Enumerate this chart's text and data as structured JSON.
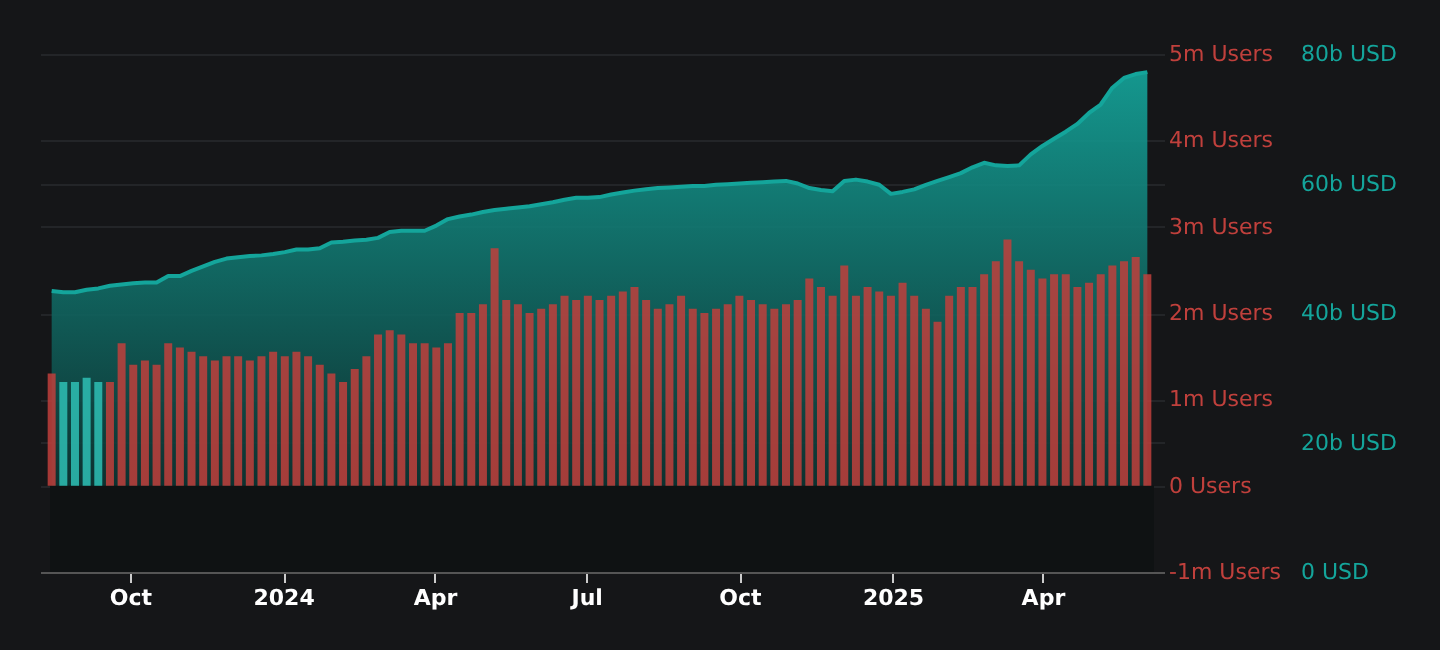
{
  "chart_data": {
    "type": "bar",
    "grid": true,
    "x": [
      "2023-08-15",
      "2023-08-22",
      "2023-08-29",
      "2023-09-05",
      "2023-09-12",
      "2023-09-19",
      "2023-09-26",
      "2023-10-03",
      "2023-10-10",
      "2023-10-17",
      "2023-10-24",
      "2023-10-31",
      "2023-11-07",
      "2023-11-14",
      "2023-11-21",
      "2023-11-28",
      "2023-12-05",
      "2023-12-12",
      "2023-12-19",
      "2023-12-26",
      "2024-01-02",
      "2024-01-09",
      "2024-01-16",
      "2024-01-23",
      "2024-01-30",
      "2024-02-06",
      "2024-02-13",
      "2024-02-20",
      "2024-02-27",
      "2024-03-05",
      "2024-03-12",
      "2024-03-19",
      "2024-03-26",
      "2024-04-02",
      "2024-04-09",
      "2024-04-16",
      "2024-04-23",
      "2024-04-30",
      "2024-05-07",
      "2024-05-14",
      "2024-05-21",
      "2024-05-28",
      "2024-06-04",
      "2024-06-11",
      "2024-06-18",
      "2024-06-25",
      "2024-07-02",
      "2024-07-09",
      "2024-07-16",
      "2024-07-23",
      "2024-07-30",
      "2024-08-06",
      "2024-08-13",
      "2024-08-20",
      "2024-08-27",
      "2024-09-03",
      "2024-09-10",
      "2024-09-17",
      "2024-09-24",
      "2024-10-01",
      "2024-10-08",
      "2024-10-15",
      "2024-10-22",
      "2024-10-29",
      "2024-11-05",
      "2024-11-12",
      "2024-11-19",
      "2024-11-26",
      "2024-12-03",
      "2024-12-10",
      "2024-12-17",
      "2024-12-24",
      "2024-12-31",
      "2025-01-07",
      "2025-01-14",
      "2025-01-21",
      "2025-01-28",
      "2025-02-04",
      "2025-02-11",
      "2025-02-18",
      "2025-02-25",
      "2025-03-04",
      "2025-03-11",
      "2025-03-18",
      "2025-03-25",
      "2025-04-01",
      "2025-04-08",
      "2025-04-15",
      "2025-04-22",
      "2025-04-29",
      "2025-05-06",
      "2025-05-13",
      "2025-05-20",
      "2025-05-27",
      "2025-06-03"
    ],
    "xlim": [
      "2023-08-14",
      "2025-06-07"
    ],
    "xticks": [
      {
        "value": "2023-10-01",
        "label": "Oct"
      },
      {
        "value": "2024-01-01",
        "label": "2024"
      },
      {
        "value": "2024-04-01",
        "label": "Apr"
      },
      {
        "value": "2024-07-01",
        "label": "Jul"
      },
      {
        "value": "2024-10-01",
        "label": "Oct"
      },
      {
        "value": "2025-01-01",
        "label": "2025"
      },
      {
        "value": "2025-04-01",
        "label": "Apr"
      }
    ],
    "ylim": [
      -1,
      5
    ],
    "yticks": [
      {
        "value": -1,
        "label": "-1m Users"
      },
      {
        "value": 0,
        "label": "0 Users"
      },
      {
        "value": 1,
        "label": "1m Users"
      },
      {
        "value": 2,
        "label": "2m Users"
      },
      {
        "value": 3,
        "label": "3m Users"
      },
      {
        "value": 4,
        "label": "4m Users"
      },
      {
        "value": 5,
        "label": "5m Users"
      }
    ],
    "y2lim": [
      0,
      80
    ],
    "y2ticks": [
      {
        "value": 0,
        "label": "0 USD"
      },
      {
        "value": 20,
        "label": "20b USD"
      },
      {
        "value": 40,
        "label": "40b USD"
      },
      {
        "value": 60,
        "label": "60b USD"
      },
      {
        "value": 80,
        "label": "80b USD"
      }
    ],
    "bands": [
      {
        "axis": "y",
        "from": -1,
        "to": 0,
        "color": "#0f1213"
      }
    ],
    "series": [
      {
        "values": [
          1.3,
          1.2,
          1.2,
          1.25,
          1.2,
          1.2,
          1.65,
          1.4,
          1.45,
          1.4,
          1.65,
          1.6,
          1.55,
          1.5,
          1.45,
          1.5,
          1.5,
          1.45,
          1.5,
          1.55,
          1.5,
          1.55,
          1.5,
          1.4,
          1.3,
          1.2,
          1.35,
          1.5,
          1.75,
          1.8,
          1.75,
          1.65,
          1.65,
          1.6,
          1.65,
          2.0,
          2.0,
          2.1,
          2.75,
          2.15,
          2.1,
          2.0,
          2.05,
          2.1,
          2.2,
          2.15,
          2.2,
          2.15,
          2.2,
          2.25,
          2.3,
          2.15,
          2.05,
          2.1,
          2.2,
          2.05,
          2.0,
          2.05,
          2.1,
          2.2,
          2.15,
          2.1,
          2.05,
          2.1,
          2.15,
          2.4,
          2.3,
          2.2,
          2.55,
          2.2,
          2.3,
          2.25,
          2.2,
          2.35,
          2.2,
          2.05,
          1.9,
          2.2,
          2.3,
          2.3,
          2.45,
          2.6,
          2.85,
          2.6,
          2.5,
          2.4,
          2.45,
          2.45,
          2.3,
          2.35,
          2.45,
          2.55,
          2.6,
          2.65,
          2.45
        ],
        "colors": [
          "#c0403c",
          "#2ebfb5",
          "#2ebfb5",
          "#2ebfb5",
          "#2ebfb5",
          "#c0403c",
          "#c0403c",
          "#c0403c",
          "#c0403c",
          "#c0403c",
          "#c0403c",
          "#c0403c",
          "#c0403c",
          "#c0403c",
          "#c0403c",
          "#c0403c",
          "#c0403c",
          "#c0403c",
          "#c0403c",
          "#c0403c",
          "#c0403c",
          "#c0403c",
          "#c0403c",
          "#c0403c",
          "#c0403c",
          "#c0403c",
          "#c0403c",
          "#c0403c",
          "#c0403c",
          "#c0403c",
          "#c0403c",
          "#c0403c",
          "#c0403c",
          "#c0403c",
          "#c0403c",
          "#c0403c",
          "#c0403c",
          "#c0403c",
          "#c0403c",
          "#c0403c",
          "#c0403c",
          "#c0403c",
          "#c0403c",
          "#c0403c",
          "#c0403c",
          "#c0403c",
          "#c0403c",
          "#c0403c",
          "#c0403c",
          "#c0403c",
          "#c0403c",
          "#c0403c",
          "#c0403c",
          "#c0403c",
          "#c0403c",
          "#c0403c",
          "#c0403c",
          "#c0403c",
          "#c0403c",
          "#c0403c",
          "#c0403c",
          "#c0403c",
          "#c0403c",
          "#c0403c",
          "#c0403c",
          "#c0403c",
          "#c0403c",
          "#c0403c",
          "#c0403c",
          "#c0403c",
          "#c0403c",
          "#c0403c",
          "#c0403c",
          "#c0403c",
          "#c0403c",
          "#c0403c",
          "#c0403c",
          "#c0403c",
          "#c0403c",
          "#c0403c",
          "#c0403c",
          "#c0403c",
          "#c0403c",
          "#c0403c",
          "#c0403c",
          "#c0403c",
          "#c0403c",
          "#c0403c",
          "#c0403c",
          "#c0403c",
          "#c0403c",
          "#c0403c",
          "#c0403c",
          "#c0403c",
          "#c0403c"
        ]
      },
      {
        "type": "area",
        "axis": "y2",
        "color": "#14a59b",
        "values": [
          43.4,
          43.2,
          43.2,
          43.6,
          43.8,
          44.2,
          44.4,
          44.6,
          44.7,
          44.7,
          45.7,
          45.7,
          46.5,
          47.2,
          47.9,
          48.4,
          48.6,
          48.8,
          48.9,
          49.1,
          49.4,
          49.8,
          49.8,
          50.0,
          50.9,
          51.0,
          51.2,
          51.3,
          51.6,
          52.5,
          52.7,
          52.7,
          52.7,
          53.5,
          54.5,
          54.9,
          55.2,
          55.6,
          55.9,
          56.1,
          56.3,
          56.5,
          56.8,
          57.1,
          57.5,
          57.8,
          57.8,
          57.9,
          58.3,
          58.6,
          58.9,
          59.1,
          59.3,
          59.4,
          59.5,
          59.6,
          59.6,
          59.8,
          59.9,
          60.0,
          60.1,
          60.2,
          60.3,
          60.4,
          60.0,
          59.3,
          59.0,
          58.8,
          60.4,
          60.6,
          60.3,
          59.8,
          58.4,
          58.7,
          59.1,
          59.8,
          60.4,
          61.0,
          61.6,
          62.5,
          63.2,
          62.8,
          62.7,
          62.8,
          64.5,
          65.8,
          66.9,
          68.0,
          69.2,
          70.9,
          72.2,
          74.8,
          76.3,
          76.9,
          77.2
        ]
      }
    ]
  }
}
